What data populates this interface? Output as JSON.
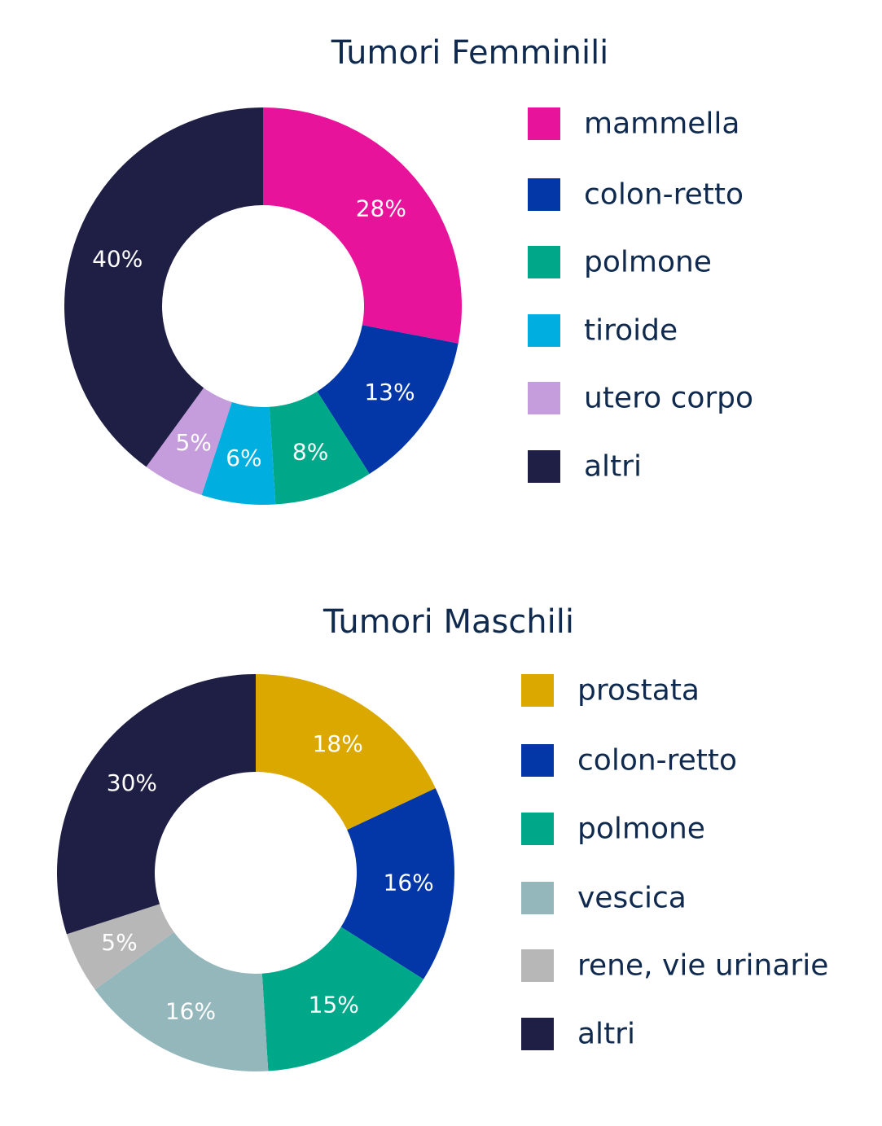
{
  "chart_data": [
    {
      "type": "pie",
      "title": "Tumori Femminili",
      "legend_placement": "right",
      "categories": [
        "mammella",
        "colon-retto",
        "polmone",
        "tiroide",
        "utero corpo",
        "altri"
      ],
      "values": [
        28,
        13,
        8,
        6,
        5,
        40
      ],
      "labels": [
        "28%",
        "13%",
        "8%",
        "6%",
        "5%",
        "40%"
      ],
      "colors": [
        "#e8139b",
        "#0336a7",
        "#00a88a",
        "#00aee0",
        "#c59cdc",
        "#1f1f45"
      ]
    },
    {
      "type": "pie",
      "title": "Tumori Maschili",
      "legend_placement": "right",
      "categories": [
        "prostata",
        "colon-retto",
        "polmone",
        "vescica",
        "rene, vie urinarie",
        "altri"
      ],
      "values": [
        18,
        16,
        15,
        16,
        5,
        30
      ],
      "labels": [
        "18%",
        "16%",
        "15%",
        "16%",
        "5%",
        "30%"
      ],
      "colors": [
        "#dba800",
        "#0336a7",
        "#00a88a",
        "#94b7bc",
        "#b7b7b7",
        "#1f1f45"
      ]
    }
  ]
}
